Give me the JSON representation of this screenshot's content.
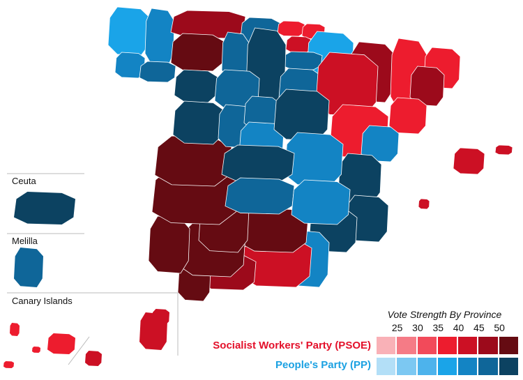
{
  "legend": {
    "title": "Vote Strength By Province",
    "ticks": [
      "25",
      "30",
      "35",
      "40",
      "45",
      "50"
    ],
    "parties": [
      {
        "name": "Socialist Workers' Party (PSOE)",
        "color": "#e3102a",
        "scale": [
          "#f9b1b7",
          "#f57b86",
          "#f24a5a",
          "#ed1c2e",
          "#cc1024",
          "#9c0a1b",
          "#650b12"
        ]
      },
      {
        "name": "People's Party (PP)",
        "color": "#1ba1e2",
        "scale": [
          "#b3dff7",
          "#7cc8f2",
          "#4db3ec",
          "#1aa4e8",
          "#1384c4",
          "#0f6699",
          "#0c4261"
        ]
      }
    ]
  },
  "insets": {
    "ceuta": "Ceuta",
    "melilla": "Melilla",
    "canary": "Canary Islands"
  },
  "provinces": [
    {
      "id": "a-coruna",
      "party": 1,
      "level": 3
    },
    {
      "id": "lugo",
      "party": 1,
      "level": 4
    },
    {
      "id": "pontevedra",
      "party": 1,
      "level": 4
    },
    {
      "id": "ourense",
      "party": 1,
      "level": 5
    },
    {
      "id": "asturias",
      "party": 0,
      "level": 5
    },
    {
      "id": "cantabria",
      "party": 1,
      "level": 5
    },
    {
      "id": "vizcaya",
      "party": 0,
      "level": 3
    },
    {
      "id": "guipuzcoa",
      "party": 0,
      "level": 3
    },
    {
      "id": "alava",
      "party": 0,
      "level": 4
    },
    {
      "id": "navarra",
      "party": 1,
      "level": 3
    },
    {
      "id": "la-rioja",
      "party": 1,
      "level": 5
    },
    {
      "id": "leon",
      "party": 0,
      "level": 6
    },
    {
      "id": "palencia",
      "party": 1,
      "level": 5
    },
    {
      "id": "burgos",
      "party": 1,
      "level": 6
    },
    {
      "id": "zamora",
      "party": 1,
      "level": 6
    },
    {
      "id": "valladolid",
      "party": 1,
      "level": 5
    },
    {
      "id": "soria",
      "party": 1,
      "level": 5
    },
    {
      "id": "huesca",
      "party": 0,
      "level": 5
    },
    {
      "id": "lleida",
      "party": 0,
      "level": 3
    },
    {
      "id": "girona",
      "party": 0,
      "level": 3
    },
    {
      "id": "barcelona",
      "party": 0,
      "level": 5
    },
    {
      "id": "tarragona",
      "party": 0,
      "level": 3
    },
    {
      "id": "zaragoza",
      "party": 0,
      "level": 4
    },
    {
      "id": "teruel",
      "party": 0,
      "level": 3
    },
    {
      "id": "castellon",
      "party": 1,
      "level": 4
    },
    {
      "id": "valencia",
      "party": 1,
      "level": 6
    },
    {
      "id": "alicante",
      "party": 1,
      "level": 6
    },
    {
      "id": "murcia",
      "party": 1,
      "level": 6
    },
    {
      "id": "almeria",
      "party": 1,
      "level": 4
    },
    {
      "id": "granada",
      "party": 0,
      "level": 4
    },
    {
      "id": "jaen",
      "party": 0,
      "level": 6
    },
    {
      "id": "malaga",
      "party": 0,
      "level": 5
    },
    {
      "id": "cadiz",
      "party": 0,
      "level": 6
    },
    {
      "id": "sevilla",
      "party": 0,
      "level": 6
    },
    {
      "id": "huelva",
      "party": 0,
      "level": 6
    },
    {
      "id": "cordoba",
      "party": 0,
      "level": 6
    },
    {
      "id": "badajoz",
      "party": 0,
      "level": 6
    },
    {
      "id": "caceres",
      "party": 0,
      "level": 6
    },
    {
      "id": "salamanca",
      "party": 1,
      "level": 6
    },
    {
      "id": "avila",
      "party": 1,
      "level": 5
    },
    {
      "id": "segovia",
      "party": 1,
      "level": 5
    },
    {
      "id": "madrid",
      "party": 1,
      "level": 4
    },
    {
      "id": "guadalajara",
      "party": 1,
      "level": 6
    },
    {
      "id": "cuenca",
      "party": 1,
      "level": 4
    },
    {
      "id": "toledo",
      "party": 1,
      "level": 6
    },
    {
      "id": "ciudad-real",
      "party": 1,
      "level": 5
    },
    {
      "id": "albacete",
      "party": 1,
      "level": 4
    },
    {
      "id": "mallorca",
      "party": 0,
      "level": 4
    },
    {
      "id": "menorca",
      "party": 0,
      "level": 4
    },
    {
      "id": "ibiza",
      "party": 0,
      "level": 4
    },
    {
      "id": "ceuta",
      "party": 1,
      "level": 6
    },
    {
      "id": "melilla",
      "party": 1,
      "level": 5
    },
    {
      "id": "santa-cruz-de-tenerife",
      "party": 0,
      "level": 3
    },
    {
      "id": "las-palmas",
      "party": 0,
      "level": 4
    }
  ]
}
